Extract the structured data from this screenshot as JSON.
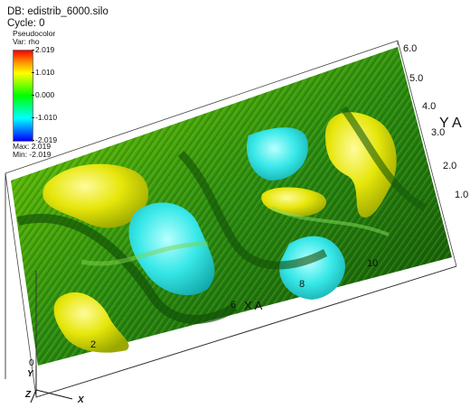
{
  "database": {
    "title": "DB: edistrib_6000.silo",
    "cycle": "Cycle: 0"
  },
  "legend": {
    "plot_type": "Pseudocolor",
    "variable": "Var: rho",
    "ticks": [
      "2.019",
      "1.010",
      "0.000",
      "-1.010",
      "-2.019"
    ],
    "max_label": "Max: 2.019",
    "min_label": "Min: -2.019",
    "colormap": [
      "#ff0000",
      "#ffff00",
      "#00ff00",
      "#00ffff",
      "#0000ff"
    ]
  },
  "axes": {
    "y_title": "Y A",
    "y_ticks": [
      "6.0",
      "5.0",
      "4.0",
      "3.0",
      "2.0",
      "1.0"
    ],
    "x_ticks": [
      "2",
      "6",
      "8",
      "10"
    ],
    "x_title": "X A",
    "triad": {
      "y": "Y",
      "z": "Z",
      "x": "X",
      "origin": "0"
    }
  }
}
